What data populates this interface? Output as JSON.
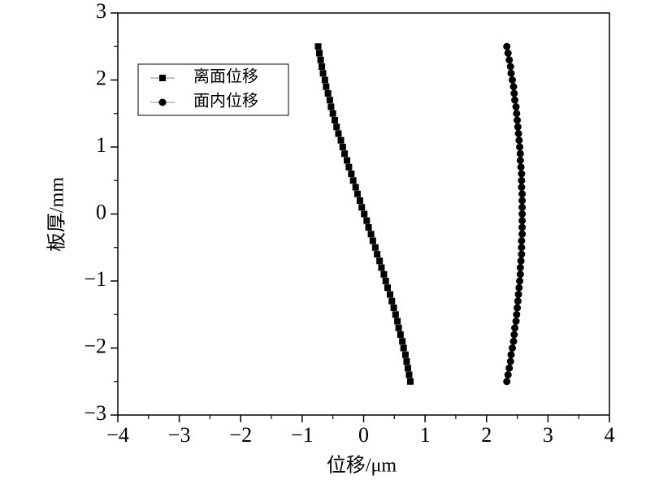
{
  "chart_data": {
    "type": "scatter",
    "xlabel": "位移/μm",
    "ylabel": "板厚/mm",
    "xlim": [
      -4,
      4
    ],
    "ylim": [
      -3,
      3
    ],
    "xticks": [
      {
        "value": -4,
        "label": "−4"
      },
      {
        "value": -3,
        "label": "−3"
      },
      {
        "value": -2,
        "label": "−2"
      },
      {
        "value": -1,
        "label": "−1"
      },
      0,
      1,
      2,
      3,
      4
    ],
    "yticks": [
      {
        "value": -3,
        "label": "−3"
      },
      {
        "value": -2,
        "label": "−2"
      },
      {
        "value": -1,
        "label": "−1"
      },
      0,
      1,
      2,
      3
    ],
    "xminorticks": [
      -3.5,
      -2.5,
      -1.5,
      -0.5,
      0.5,
      1.5,
      2.5,
      3.5
    ],
    "yminorticks": [
      -2.5,
      -1.5,
      -0.5,
      0.5,
      1.5,
      2.5
    ],
    "legend": "upper left",
    "series": [
      {
        "name": "离面位移",
        "marker": "square",
        "color": "#000000",
        "x": [
          -0.74,
          -0.72,
          -0.7,
          -0.68,
          -0.66,
          -0.63,
          -0.61,
          -0.58,
          -0.55,
          -0.53,
          -0.5,
          -0.47,
          -0.44,
          -0.41,
          -0.37,
          -0.34,
          -0.31,
          -0.27,
          -0.24,
          -0.2,
          -0.17,
          -0.13,
          -0.1,
          -0.06,
          -0.03,
          0.01,
          0.05,
          0.08,
          0.12,
          0.15,
          0.19,
          0.22,
          0.26,
          0.29,
          0.33,
          0.36,
          0.39,
          0.43,
          0.46,
          0.49,
          0.52,
          0.55,
          0.57,
          0.6,
          0.63,
          0.65,
          0.68,
          0.7,
          0.72,
          0.74,
          0.76
        ],
        "y": [
          2.5,
          2.4,
          2.3,
          2.2,
          2.1,
          2.0,
          1.9,
          1.8,
          1.7,
          1.6,
          1.5,
          1.4,
          1.3,
          1.2,
          1.1,
          1.0,
          0.9,
          0.8,
          0.7,
          0.6,
          0.5,
          0.4,
          0.3,
          0.2,
          0.1,
          0,
          -0.1,
          -0.2,
          -0.3,
          -0.4,
          -0.5,
          -0.6,
          -0.7,
          -0.8,
          -0.9,
          -1.0,
          -1.1,
          -1.2,
          -1.3,
          -1.4,
          -1.5,
          -1.6,
          -1.7,
          -1.8,
          -1.9,
          -2.0,
          -2.1,
          -2.2,
          -2.3,
          -2.4,
          -2.5
        ]
      },
      {
        "name": "面内位移",
        "marker": "circle",
        "color": "#000000",
        "x": [
          2.33,
          2.35,
          2.37,
          2.39,
          2.4,
          2.42,
          2.44,
          2.45,
          2.46,
          2.48,
          2.49,
          2.5,
          2.51,
          2.52,
          2.53,
          2.54,
          2.55,
          2.55,
          2.56,
          2.57,
          2.57,
          2.57,
          2.58,
          2.58,
          2.58,
          2.58,
          2.58,
          2.58,
          2.58,
          2.57,
          2.57,
          2.57,
          2.56,
          2.55,
          2.55,
          2.54,
          2.53,
          2.52,
          2.51,
          2.5,
          2.49,
          2.48,
          2.46,
          2.45,
          2.44,
          2.42,
          2.4,
          2.39,
          2.37,
          2.35,
          2.33
        ],
        "y": [
          2.5,
          2.4,
          2.3,
          2.2,
          2.1,
          2.0,
          1.9,
          1.8,
          1.7,
          1.6,
          1.5,
          1.4,
          1.3,
          1.2,
          1.1,
          1.0,
          0.9,
          0.8,
          0.7,
          0.6,
          0.5,
          0.4,
          0.3,
          0.2,
          0.1,
          0,
          -0.1,
          -0.2,
          -0.3,
          -0.4,
          -0.5,
          -0.6,
          -0.7,
          -0.8,
          -0.9,
          -1.0,
          -1.1,
          -1.2,
          -1.3,
          -1.4,
          -1.5,
          -1.6,
          -1.7,
          -1.8,
          -1.9,
          -2.0,
          -2.1,
          -2.2,
          -2.3,
          -2.4,
          -2.5
        ]
      }
    ]
  }
}
